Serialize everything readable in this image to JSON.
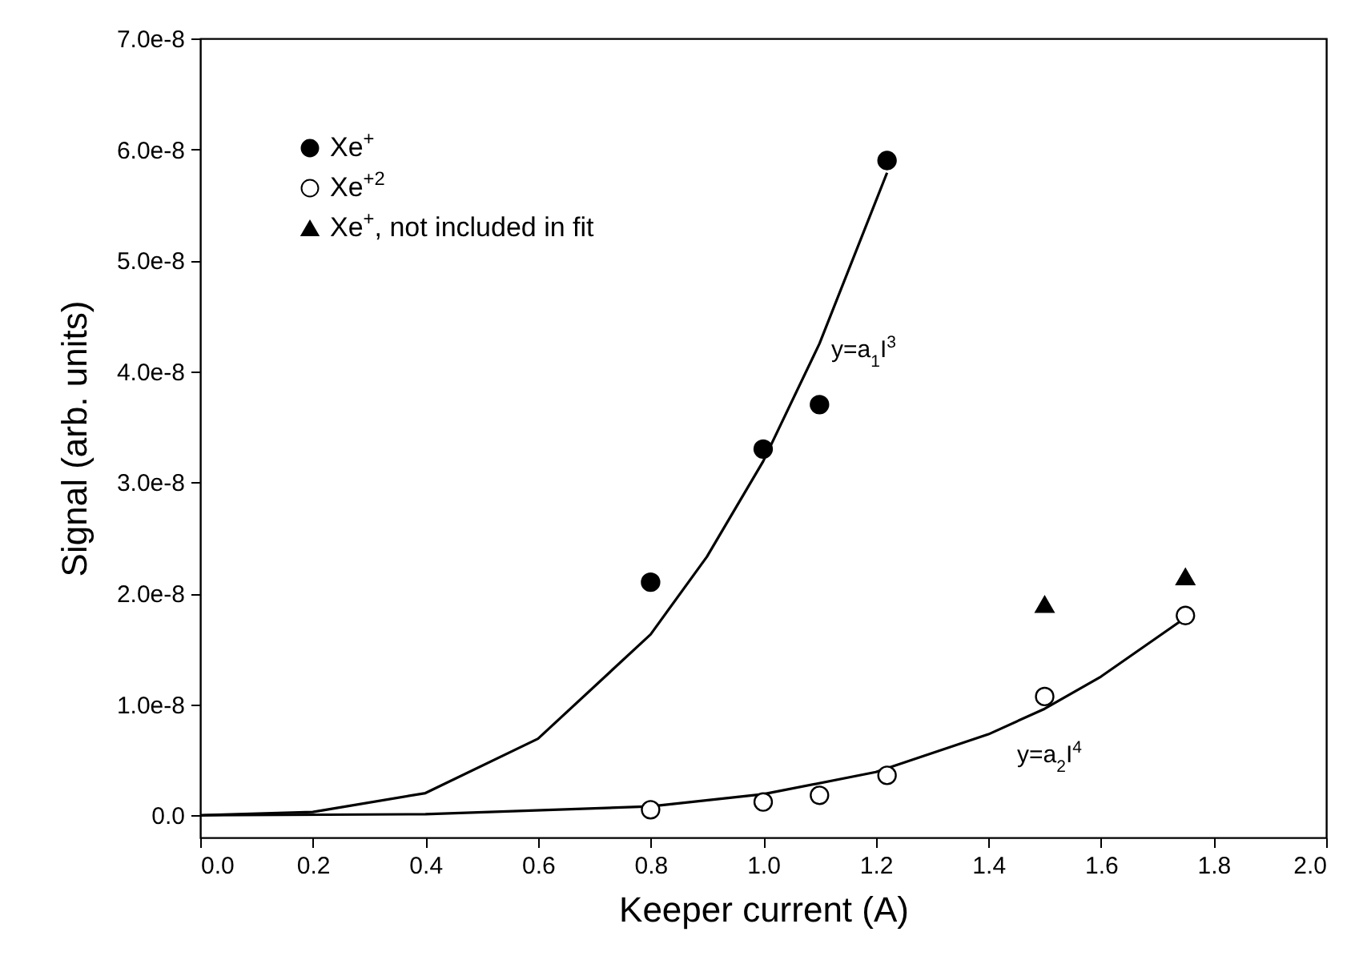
{
  "chart_data": {
    "type": "scatter",
    "xlabel": "Keeper current (A)",
    "ylabel": "Signal (arb. units)",
    "xlim": [
      0,
      2
    ],
    "ylim": [
      -2e-09,
      7e-08
    ],
    "xticks": [
      {
        "value": 0,
        "label": "0.0"
      },
      0.2,
      0.4,
      0.6,
      0.8,
      {
        "value": 1,
        "label": "1.0"
      },
      1.2,
      1.4,
      1.6,
      1.8,
      {
        "value": 2,
        "label": "2.0"
      }
    ],
    "yticks": [
      {
        "value": 0,
        "label": "0.0"
      },
      {
        "value": 1e-08,
        "label": "1.0e-8"
      },
      {
        "value": 2e-08,
        "label": "2.0e-8"
      },
      {
        "value": 3e-08,
        "label": "3.0e-8"
      },
      {
        "value": 4e-08,
        "label": "4.0e-8"
      },
      {
        "value": 5e-08,
        "label": "5.0e-8"
      },
      {
        "value": 6e-08,
        "label": "6.0e-8"
      },
      {
        "value": 7e-08,
        "label": "7.0e-8"
      }
    ],
    "grid": false,
    "legend": "top left",
    "series": [
      {
        "name": "Xe$^{+}$",
        "marker": "circle",
        "color": "#000000",
        "x": [
          0.8,
          1.0,
          1.1,
          1.22
        ],
        "values": [
          2.1e-08,
          3.3e-08,
          3.7e-08,
          5.9e-08
        ]
      },
      {
        "name": "Xe$^{+2}$",
        "marker": "circle",
        "color": "#ffffff",
        "x": [
          0.8,
          1.0,
          1.1,
          1.22,
          1.5,
          1.75
        ],
        "values": [
          5e-10,
          1.2e-09,
          1.8e-09,
          3.6e-09,
          1.07e-08,
          1.8e-08
        ]
      },
      {
        "name": "Xe$^{+}$, not included in fit",
        "marker": "triangle",
        "color": "#000000",
        "x": [
          1.5,
          1.75
        ],
        "values": [
          1.9e-08,
          2.15e-08
        ]
      },
      {
        "type": "line",
        "color": "#000000",
        "x": [
          0,
          0.2,
          0.4,
          0.6,
          0.8,
          0.9,
          1.0,
          1.1,
          1.22
        ],
        "values": [
          0,
          3e-10,
          2e-09,
          6.9e-09,
          1.63e-08,
          2.33e-08,
          3.19e-08,
          4.25e-08,
          5.79e-08
        ]
      },
      {
        "type": "line",
        "color": "#000000",
        "x": [
          0,
          0.4,
          0.8,
          1.0,
          1.2,
          1.4,
          1.5,
          1.6,
          1.75
        ],
        "values": [
          0,
          1e-10,
          8e-10,
          1.9e-09,
          3.9e-09,
          7.3e-09,
          9.6e-09,
          1.25e-08,
          1.78e-08
        ]
      }
    ],
    "annotations": [
      "y=a$_{1}$I$^{3}$",
      "y=a$_{2}$I$^{4}$"
    ]
  }
}
